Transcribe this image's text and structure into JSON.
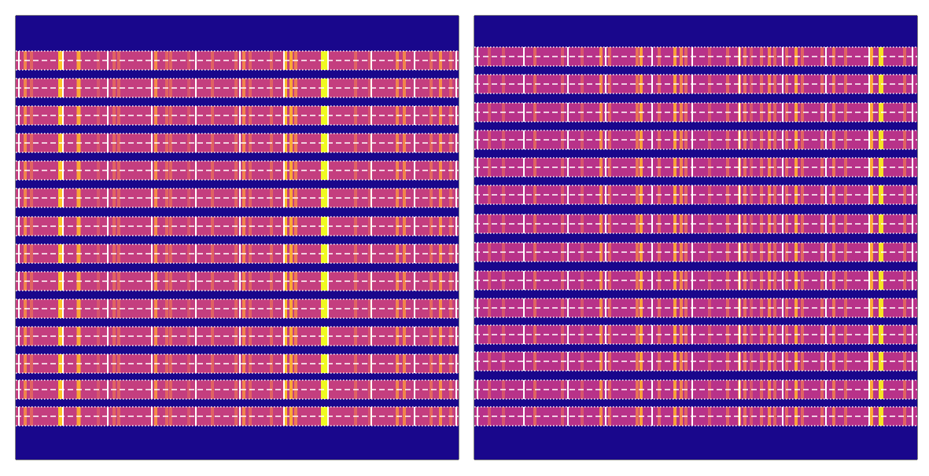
{
  "chart_data": [
    {
      "type": "trace_image",
      "xlim": [
        0,
        563
      ],
      "ylim": [
        0,
        565
      ],
      "tick_labels": false,
      "grid": false,
      "color_range": [
        0,
        1
      ],
      "background": 0.03,
      "continuum": 0.47,
      "trace_width": 24,
      "traces": [
        57,
        92,
        127,
        162,
        197,
        232,
        268,
        303,
        338,
        373,
        408,
        443,
        476,
        510
      ],
      "markers": [
        4,
        60,
        117,
        173,
        229,
        285,
        341,
        397,
        452,
        507,
        560
      ],
      "lines": {
        "x": [
          12,
          20,
          57,
          80,
          105,
          125,
          131,
          178,
          192,
          197,
          220,
          250,
          280,
          290,
          298,
          325,
          343,
          350,
          356,
          392,
          432,
          450,
          485,
          494,
          528,
          540,
          553
        ],
        "width": [
          4,
          4,
          6,
          5,
          4,
          4,
          4,
          4,
          4,
          4,
          4,
          4,
          4,
          4,
          4,
          4,
          4,
          4,
          4,
          8,
          4,
          4,
          4,
          4,
          4,
          4,
          4
        ],
        "values": [
          0.7,
          0.6,
          0.88,
          0.8,
          0.55,
          0.6,
          0.6,
          0.72,
          0.6,
          0.6,
          0.55,
          0.6,
          0.6,
          0.7,
          0.6,
          0.6,
          0.85,
          0.8,
          0.68,
          1.0,
          0.6,
          0.55,
          0.7,
          0.7,
          0.62,
          0.72,
          0.6
        ]
      }
    },
    {
      "type": "trace_image",
      "xlim": [
        0,
        563
      ],
      "ylim": [
        0,
        565
      ],
      "tick_labels": false,
      "grid": false,
      "color_range": [
        0,
        1
      ],
      "background": 0.03,
      "continuum": 0.43,
      "trace_width": 24,
      "traces": [
        52,
        87,
        123,
        158,
        193,
        228,
        265,
        301,
        337,
        372,
        406,
        440,
        476,
        510
      ],
      "markers": [
        4,
        63,
        119,
        167,
        226,
        277,
        337,
        392,
        447,
        502,
        557
      ],
      "lines": {
        "x": [
          19,
          37,
          77,
          112,
          137,
          161,
          172,
          207,
          212,
          235,
          255,
          263,
          269,
          299,
          322,
          337,
          344,
          352,
          365,
          375,
          382,
          397,
          409,
          417,
          442,
          457,
          472,
          505,
          517,
          547
        ],
        "width": [
          4,
          4,
          4,
          4,
          4,
          4,
          4,
          4,
          4,
          4,
          4,
          4,
          4,
          4,
          4,
          4,
          4,
          4,
          4,
          4,
          4,
          4,
          4,
          4,
          4,
          4,
          4,
          4,
          6,
          4
        ],
        "values": [
          0.55,
          0.55,
          0.6,
          0.55,
          0.55,
          0.72,
          0.6,
          0.65,
          0.78,
          0.6,
          0.78,
          0.7,
          0.6,
          0.55,
          0.6,
          0.72,
          0.62,
          0.55,
          0.6,
          0.7,
          0.6,
          0.6,
          0.78,
          0.6,
          0.6,
          0.65,
          0.6,
          0.8,
          0.95,
          0.6
        ]
      }
    }
  ]
}
